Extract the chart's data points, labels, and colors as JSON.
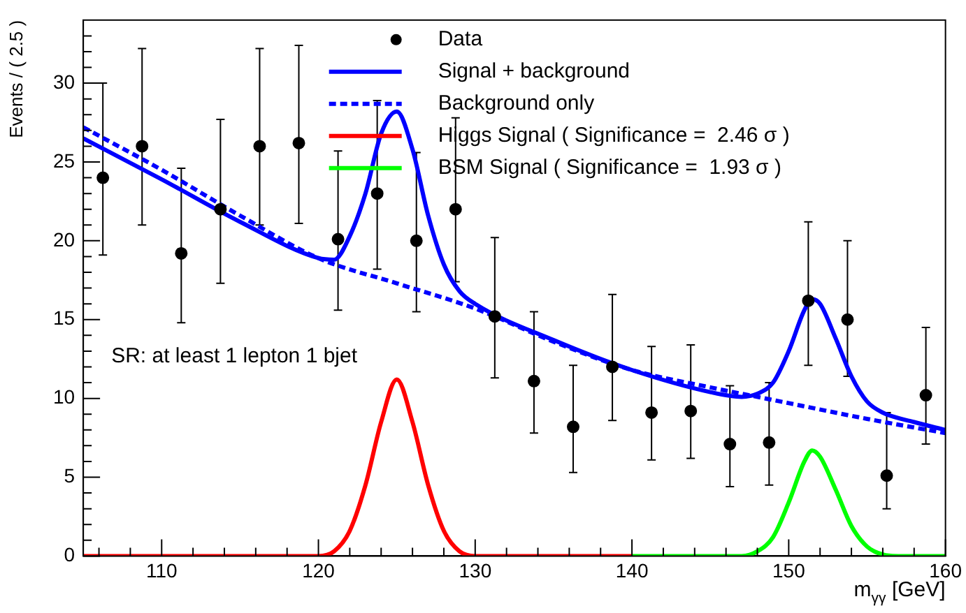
{
  "chart_data": {
    "type": "line",
    "xlabel": "m$_{γγ}$ [GeV]",
    "ylabel": "Events / ( 2.5 )",
    "xlim": [
      105,
      160
    ],
    "ylim": [
      0,
      34
    ],
    "xticks": [
      {
        "value": 106,
        "label": null
      },
      {
        "value": 108,
        "label": null
      },
      110,
      {
        "value": 112,
        "label": null
      },
      {
        "value": 114,
        "label": null
      },
      {
        "value": 116,
        "label": null
      },
      {
        "value": 118,
        "label": null
      },
      120,
      {
        "value": 122,
        "label": null
      },
      {
        "value": 124,
        "label": null
      },
      {
        "value": 126,
        "label": null
      },
      {
        "value": 128,
        "label": null
      },
      130,
      {
        "value": 132,
        "label": null
      },
      {
        "value": 134,
        "label": null
      },
      {
        "value": 136,
        "label": null
      },
      {
        "value": 138,
        "label": null
      },
      140,
      {
        "value": 142,
        "label": null
      },
      {
        "value": 144,
        "label": null
      },
      {
        "value": 146,
        "label": null
      },
      {
        "value": 148,
        "label": null
      },
      150,
      {
        "value": 152,
        "label": null
      },
      {
        "value": 154,
        "label": null
      },
      {
        "value": 156,
        "label": null
      },
      {
        "value": 158,
        "label": null
      },
      160
    ],
    "yticks": [
      0,
      {
        "value": 1,
        "label": null
      },
      {
        "value": 2,
        "label": null
      },
      {
        "value": 3,
        "label": null
      },
      {
        "value": 4,
        "label": null
      },
      5,
      {
        "value": 6,
        "label": null
      },
      {
        "value": 7,
        "label": null
      },
      {
        "value": 8,
        "label": null
      },
      {
        "value": 9,
        "label": null
      },
      10,
      {
        "value": 11,
        "label": null
      },
      {
        "value": 12,
        "label": null
      },
      {
        "value": 13,
        "label": null
      },
      {
        "value": 14,
        "label": null
      },
      15,
      {
        "value": 16,
        "label": null
      },
      {
        "value": 17,
        "label": null
      },
      {
        "value": 18,
        "label": null
      },
      {
        "value": 19,
        "label": null
      },
      20,
      {
        "value": 21,
        "label": null
      },
      {
        "value": 22,
        "label": null
      },
      {
        "value": 23,
        "label": null
      },
      {
        "value": 24,
        "label": null
      },
      25,
      {
        "value": 26,
        "label": null
      },
      {
        "value": 27,
        "label": null
      },
      {
        "value": 28,
        "label": null
      },
      {
        "value": 29,
        "label": null
      },
      30,
      {
        "value": 31,
        "label": null
      },
      {
        "value": 32,
        "label": null
      },
      {
        "value": 33,
        "label": null
      }
    ],
    "grid": false,
    "legend": "top right",
    "annotations": [
      "SR: at least 1 lepton 1 bjet"
    ],
    "series": [
      {
        "name": "Data",
        "type": "scatter",
        "marker": "circle",
        "color": "#000000",
        "x": [
          106.25,
          108.75,
          111.25,
          113.75,
          116.25,
          118.75,
          121.25,
          123.75,
          126.25,
          128.75,
          131.25,
          133.75,
          136.25,
          138.75,
          141.25,
          143.75,
          146.25,
          148.75,
          151.25,
          153.75,
          156.25,
          158.75
        ],
        "values": [
          24,
          26,
          19.2,
          22,
          26,
          26.2,
          20.1,
          23,
          20,
          22,
          15.2,
          11.1,
          8.2,
          12,
          9.1,
          9.2,
          7.1,
          7.2,
          16.2,
          15,
          5.1,
          10.2
        ],
        "errors": [
          [
            19.1,
            30
          ],
          [
            21,
            32.2
          ],
          [
            14.8,
            24.6
          ],
          [
            17.3,
            27.7
          ],
          [
            21,
            32.2
          ],
          [
            21.1,
            32.4
          ],
          [
            15.6,
            25.7
          ],
          [
            18.2,
            28.9
          ],
          [
            15.5,
            25.6
          ],
          [
            17.4,
            27.8
          ],
          [
            11.3,
            20.2
          ],
          [
            7.8,
            15.5
          ],
          [
            5.3,
            12.1
          ],
          [
            8.6,
            16.6
          ],
          [
            6.1,
            13.3
          ],
          [
            6.2,
            13.4
          ],
          [
            4.4,
            10.8
          ],
          [
            4.5,
            11
          ],
          [
            12.1,
            21.2
          ],
          [
            11.4,
            20
          ],
          [
            3,
            9.1
          ],
          [
            7.1,
            14.5
          ]
        ]
      },
      {
        "name": "Signal + background",
        "marker": "none",
        "line_style": "solid",
        "color": "#0000ff",
        "x": [
          105,
          110,
          115,
          120,
          121,
          122,
          123,
          124,
          125,
          126,
          127,
          128,
          129,
          130,
          135,
          140,
          145,
          147,
          148,
          149,
          150,
          151,
          151.5,
          152,
          153,
          154,
          155,
          156,
          158,
          160
        ],
        "values": [
          26.5,
          23.9,
          21.2,
          18.9,
          18.8,
          20.3,
          23,
          26.8,
          28.2,
          25.8,
          21.6,
          18.5,
          16.8,
          16,
          13.7,
          11.8,
          10.4,
          10.1,
          10.3,
          11,
          13,
          15.6,
          16.3,
          16,
          13.8,
          11.4,
          9.8,
          9.1,
          8.5,
          8
        ]
      },
      {
        "name": "Background only",
        "marker": "none",
        "line_style": "dashed",
        "color": "#0000ff",
        "x": [
          105,
          110,
          115,
          120,
          125,
          130,
          135,
          140,
          145,
          150,
          155,
          160
        ],
        "values": [
          27.2,
          24.5,
          21.6,
          18.9,
          17.3,
          15.7,
          13.6,
          11.8,
          10.7,
          9.7,
          8.7,
          7.8
        ]
      },
      {
        "name": "Higgs Signal ( Significance =  2.46 σ )",
        "marker": "none",
        "line_style": "solid",
        "color": "#ff0000",
        "x": [
          105,
          120,
          121,
          122,
          123,
          124,
          125,
          126,
          127,
          128,
          129,
          130,
          140
        ],
        "values": [
          0,
          0,
          0.3,
          1.6,
          4.5,
          8.5,
          11.2,
          8.5,
          4.5,
          1.6,
          0.3,
          0,
          0
        ]
      },
      {
        "name": "BSM Signal ( Significance =  1.93 σ )",
        "marker": "none",
        "line_style": "solid",
        "color": "#00ff00",
        "x": [
          140,
          147,
          148,
          149,
          150,
          151,
          151.5,
          152,
          153,
          154,
          155,
          156,
          157,
          160
        ],
        "values": [
          0,
          0,
          0.3,
          1.2,
          3.4,
          6,
          6.7,
          6.3,
          4.2,
          1.9,
          0.6,
          0.1,
          0,
          0
        ]
      }
    ]
  }
}
